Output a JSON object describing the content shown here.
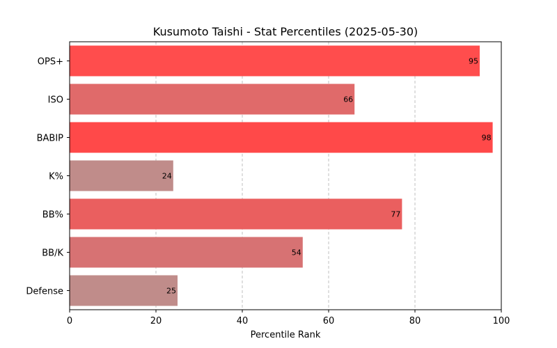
{
  "chart_data": {
    "type": "bar",
    "orientation": "horizontal",
    "title": "Kusumoto Taishi - Stat Percentiles (2025-05-30)",
    "xlabel": "Percentile Rank",
    "ylabel": "",
    "xlim": [
      0,
      100
    ],
    "xticks": [
      0,
      20,
      40,
      60,
      80,
      100
    ],
    "grid": "vertical dashed",
    "categories": [
      "OPS+",
      "ISO",
      "BABIP",
      "K%",
      "BB%",
      "BB/K",
      "Defense"
    ],
    "values": [
      95,
      66,
      98,
      24,
      77,
      54,
      25
    ],
    "colors": [
      "#ff4d4d",
      "#e06a6a",
      "#ff4949",
      "#c08c8a",
      "#ea5f5f",
      "#d77273",
      "#c08c8a"
    ]
  }
}
